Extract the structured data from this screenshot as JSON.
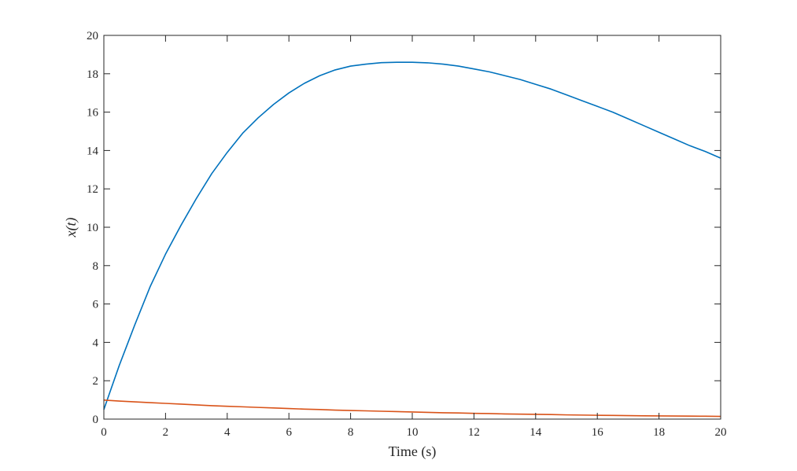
{
  "chart_data": {
    "type": "line",
    "title": "",
    "xlabel": "Time (s)",
    "ylabel": "x(t)",
    "xlim": [
      0,
      20
    ],
    "ylim": [
      0,
      20
    ],
    "xticks": [
      0,
      2,
      4,
      6,
      8,
      10,
      12,
      14,
      16,
      18,
      20
    ],
    "yticks": [
      0,
      2,
      4,
      6,
      8,
      10,
      12,
      14,
      16,
      18,
      20
    ],
    "grid": false,
    "box": true,
    "x": [
      0,
      0.5,
      1,
      1.5,
      2,
      2.5,
      3,
      3.5,
      4,
      4.5,
      5,
      5.5,
      6,
      6.5,
      7,
      7.5,
      8,
      8.5,
      9,
      9.5,
      10,
      10.5,
      11,
      11.5,
      12,
      12.5,
      13,
      13.5,
      14,
      14.5,
      15,
      15.5,
      16,
      16.5,
      17,
      17.5,
      18,
      18.5,
      19,
      19.5,
      20
    ],
    "series": [
      {
        "color": "#0072BD",
        "values": [
          0.5,
          2.8,
          4.9,
          6.9,
          8.6,
          10.1,
          11.5,
          12.8,
          13.9,
          14.9,
          15.7,
          16.4,
          17.0,
          17.5,
          17.9,
          18.2,
          18.4,
          18.5,
          18.58,
          18.6,
          18.6,
          18.57,
          18.5,
          18.4,
          18.25,
          18.1,
          17.9,
          17.7,
          17.45,
          17.2,
          16.9,
          16.6,
          16.3,
          16.0,
          15.65,
          15.3,
          14.95,
          14.6,
          14.25,
          13.95,
          13.6
        ]
      },
      {
        "color": "#D95319",
        "values": [
          0.99,
          0.94,
          0.9,
          0.86,
          0.82,
          0.78,
          0.74,
          0.7,
          0.67,
          0.64,
          0.61,
          0.58,
          0.55,
          0.52,
          0.5,
          0.47,
          0.45,
          0.43,
          0.41,
          0.39,
          0.37,
          0.35,
          0.33,
          0.32,
          0.3,
          0.29,
          0.27,
          0.26,
          0.25,
          0.24,
          0.22,
          0.21,
          0.2,
          0.19,
          0.18,
          0.17,
          0.165,
          0.16,
          0.155,
          0.15,
          0.14
        ]
      }
    ]
  }
}
